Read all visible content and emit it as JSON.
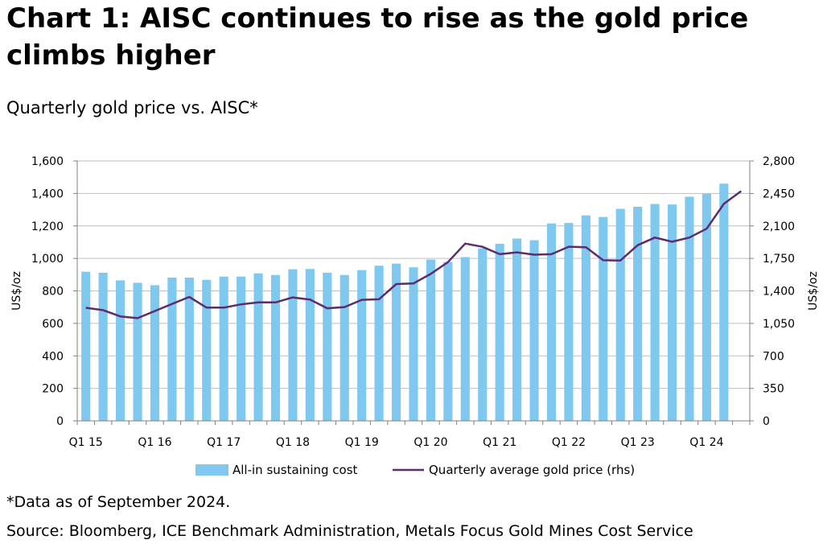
{
  "header": {
    "title": "Chart 1:  AISC continues to rise as the gold price climbs higher",
    "subtitle": "Quarterly gold price vs. AISC*"
  },
  "footer": {
    "footnote": "*Data as of September 2024.",
    "source": "Source: Bloomberg, ICE Benchmark Administration, Metals Focus Gold Mines Cost Service"
  },
  "colors": {
    "bar": "#7fc9f0",
    "line": "#5b2d6e",
    "grid": "#bfbfbf",
    "axis": "#808080",
    "text": "#000000"
  },
  "chart_data": {
    "type": "bar",
    "title": "AISC continues to rise as the gold price climbs higher",
    "categories": [
      "Q1 15",
      "Q2 15",
      "Q3 15",
      "Q4 15",
      "Q1 16",
      "Q2 16",
      "Q3 16",
      "Q4 16",
      "Q1 17",
      "Q2 17",
      "Q3 17",
      "Q4 17",
      "Q1 18",
      "Q2 18",
      "Q3 18",
      "Q4 18",
      "Q1 19",
      "Q2 19",
      "Q3 19",
      "Q4 19",
      "Q1 20",
      "Q2 20",
      "Q3 20",
      "Q4 20",
      "Q1 21",
      "Q2 21",
      "Q3 21",
      "Q4 21",
      "Q1 22",
      "Q2 22",
      "Q3 22",
      "Q4 22",
      "Q1 23",
      "Q2 23",
      "Q3 23",
      "Q4 23",
      "Q1 24",
      "Q2 24",
      "Q3 24"
    ],
    "x_tick_labels": [
      "Q1 15",
      "Q1 16",
      "Q1 17",
      "Q1 18",
      "Q1 19",
      "Q1 20",
      "Q1 21",
      "Q1 22",
      "Q1 23",
      "Q1 24"
    ],
    "series": [
      {
        "name": "All-in sustaining cost",
        "type": "bar",
        "axis": "left",
        "values": [
          918,
          912,
          865,
          850,
          835,
          882,
          882,
          868,
          888,
          888,
          908,
          898,
          933,
          935,
          912,
          898,
          928,
          955,
          968,
          945,
          993,
          978,
          1008,
          1062,
          1090,
          1122,
          1112,
          1215,
          1218,
          1265,
          1255,
          1305,
          1318,
          1335,
          1332,
          1380,
          1398,
          1460,
          null
        ]
      },
      {
        "name": "Quarterly average gold price (rhs)",
        "type": "line",
        "axis": "right",
        "values": [
          1218,
          1193,
          1125,
          1106,
          1183,
          1260,
          1335,
          1220,
          1220,
          1255,
          1277,
          1276,
          1330,
          1306,
          1213,
          1226,
          1304,
          1310,
          1474,
          1481,
          1583,
          1710,
          1910,
          1875,
          1795,
          1815,
          1790,
          1795,
          1876,
          1870,
          1730,
          1728,
          1892,
          1975,
          1930,
          1975,
          2070,
          2338,
          2475
        ]
      }
    ],
    "y_left": {
      "label": "US$/oz",
      "range": [
        0,
        1600
      ],
      "ticks": [
        0,
        200,
        400,
        600,
        800,
        1000,
        1200,
        1400,
        1600
      ],
      "tick_labels": [
        "0",
        "200",
        "400",
        "600",
        "800",
        "1,000",
        "1,200",
        "1,400",
        "1,600"
      ]
    },
    "y_right": {
      "label": "US$/oz",
      "range": [
        0,
        2800
      ],
      "ticks": [
        0,
        350,
        700,
        1050,
        1400,
        1750,
        2100,
        2450,
        2800
      ],
      "tick_labels": [
        "0",
        "350",
        "700",
        "1,050",
        "1,400",
        "1,750",
        "2,100",
        "2,450",
        "2,800"
      ]
    },
    "grid": true,
    "legend": {
      "position": "bottom",
      "entries": [
        "All-in sustaining cost",
        "Quarterly average gold price (rhs)"
      ]
    }
  }
}
